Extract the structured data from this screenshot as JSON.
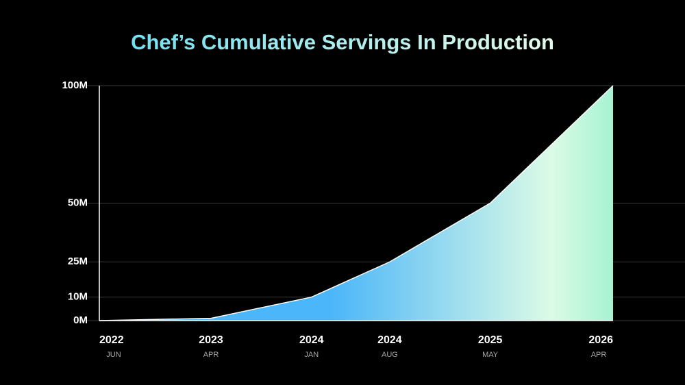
{
  "chart_data": {
    "type": "area",
    "title": "Chef’s Cumulative Servings In Production",
    "x": [
      "2022-06",
      "2023-04",
      "2024-01",
      "2024-08",
      "2025-05",
      "2026-04"
    ],
    "values": [
      0,
      1,
      10,
      25,
      50,
      100
    ],
    "xlim": [
      "2022-06",
      "2026-04"
    ],
    "xticks": [
      {
        "value": "2022-06",
        "label": "2022",
        "sublabel": "JUN"
      },
      {
        "value": "2023-04",
        "label": "2023",
        "sublabel": "APR"
      },
      {
        "value": "2024-01",
        "label": "2024",
        "sublabel": "JAN"
      },
      {
        "value": "2024-08",
        "label": "2024",
        "sublabel": "AUG"
      },
      {
        "value": "2025-05",
        "label": "2025",
        "sublabel": "MAY"
      },
      {
        "value": "2026-04",
        "label": "2026",
        "sublabel": "APR"
      }
    ],
    "ylim": [
      0,
      100
    ],
    "yticks": [
      {
        "value": 0,
        "label": "0M"
      },
      {
        "value": 10,
        "label": "10M"
      },
      {
        "value": 25,
        "label": "25M"
      },
      {
        "value": 50,
        "label": "50M"
      },
      {
        "value": 100,
        "label": "100M"
      }
    ],
    "grid": true,
    "colors": [
      "#4bb6f9",
      "#dcfbe6",
      "#a6f3d2"
    ]
  }
}
